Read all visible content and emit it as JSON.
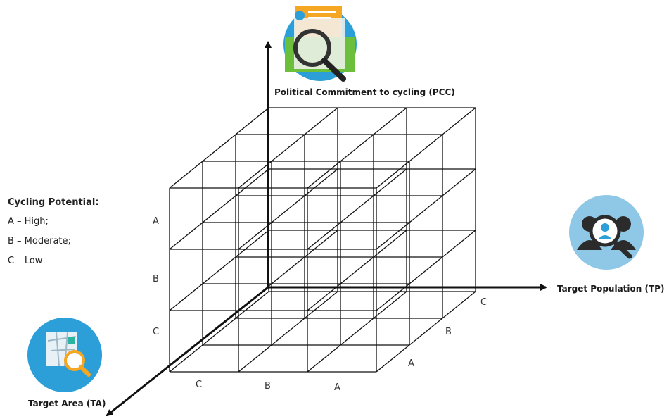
{
  "axes": {
    "vertical": {
      "title": "Political Commitment to cycling (PCC)",
      "icon": "policy-document-magnifier-icon",
      "ticks": [
        "A",
        "B",
        "C"
      ]
    },
    "horizontal": {
      "title": "Target Population (TP)",
      "icon": "people-magnifier-icon",
      "ticks": [
        "C",
        "B",
        "A"
      ]
    },
    "depth": {
      "title": "Target Area (TA)",
      "icon": "map-magnifier-icon",
      "ticks": [
        "C",
        "B",
        "A"
      ]
    }
  },
  "legend": {
    "title": "Cycling Potential:",
    "items": [
      "A – High;",
      "B – Moderate;",
      "C – Low"
    ]
  },
  "colors": {
    "line": "#111111",
    "icon_circle_blue": "#2c9fd8",
    "icon_circle_light": "#8fc8e6",
    "icon_green": "#6cbf3a",
    "icon_orange": "#f5a623"
  }
}
